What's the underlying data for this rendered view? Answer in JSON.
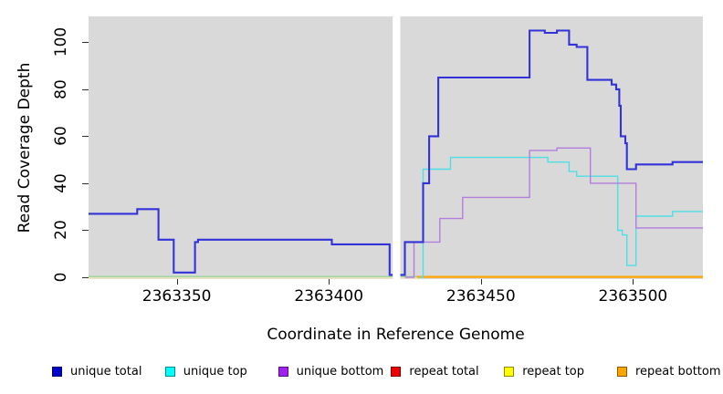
{
  "chart_data": {
    "type": "line",
    "line_style": "step",
    "title": "",
    "xlabel": "Coordinate in Reference Genome",
    "ylabel": "Read Coverage Depth",
    "xlim": [
      2363321,
      2363523
    ],
    "ylim": [
      0,
      111
    ],
    "xticks": [
      2363350,
      2363400,
      2363450,
      2363500
    ],
    "yticks": [
      0,
      20,
      40,
      60,
      80,
      100
    ],
    "grid": false,
    "panel_bg": "#D9D9D9",
    "legend_position": "bottom",
    "gap_band": {
      "from": 2363421,
      "to": 2363423.5,
      "color": "#FFFFFF"
    },
    "series": [
      {
        "name": "unique total",
        "legend_color": "#0000CC",
        "line_color": "#3232D8",
        "line_width": 2.1,
        "z": 3,
        "render": true,
        "steps": [
          [
            2363321,
            27
          ],
          [
            2363337,
            29
          ],
          [
            2363344,
            16
          ],
          [
            2363349,
            2
          ],
          [
            2363356,
            15
          ],
          [
            2363357,
            16
          ],
          [
            2363401,
            14
          ],
          [
            2363420,
            1
          ],
          [
            2363425,
            15
          ],
          [
            2363431,
            40
          ],
          [
            2363433,
            60
          ],
          [
            2363436,
            85
          ],
          [
            2363466,
            105
          ],
          [
            2363471,
            104
          ],
          [
            2363475,
            105
          ],
          [
            2363479,
            99
          ],
          [
            2363481.5,
            98
          ],
          [
            2363485,
            84
          ],
          [
            2363493,
            82
          ],
          [
            2363494.5,
            80
          ],
          [
            2363495.5,
            73
          ],
          [
            2363496,
            60
          ],
          [
            2363497.5,
            57
          ],
          [
            2363498,
            46
          ],
          [
            2363501,
            48
          ],
          [
            2363513,
            49
          ]
        ]
      },
      {
        "name": "unique top",
        "legend_color": "#00FFFF",
        "line_color": "#4EDFE6",
        "line_width": 1.4,
        "z": 1,
        "render": true,
        "steps": [
          [
            2363430,
            0
          ],
          [
            2363431,
            46
          ],
          [
            2363440,
            51
          ],
          [
            2363472,
            49
          ],
          [
            2363479,
            45
          ],
          [
            2363481.5,
            43
          ],
          [
            2363495,
            20
          ],
          [
            2363496.5,
            18
          ],
          [
            2363498,
            5
          ],
          [
            2363501,
            26
          ],
          [
            2363513,
            28
          ]
        ]
      },
      {
        "name": "unique bottom",
        "legend_color": "#A020F0",
        "line_color": "#B27EDC",
        "line_width": 1.4,
        "z": 2,
        "render": true,
        "steps": [
          [
            2363425,
            0
          ],
          [
            2363428,
            15
          ],
          [
            2363436.5,
            25
          ],
          [
            2363444,
            34
          ],
          [
            2363466,
            54
          ],
          [
            2363475,
            55
          ],
          [
            2363486,
            40
          ],
          [
            2363501,
            21
          ]
        ]
      },
      {
        "name": "repeat total",
        "legend_color": "#EE0000",
        "line_color": "#EE0000",
        "line_width": 1,
        "z": 0,
        "render": false,
        "steps": [
          [
            2363321,
            0
          ]
        ]
      },
      {
        "name": "repeat top",
        "legend_color": "#FFFF00",
        "line_color": "#FFFF00",
        "line_width": 1,
        "z": 0,
        "render": false,
        "steps": [
          [
            2363321,
            0
          ]
        ]
      },
      {
        "name": "repeat bottom",
        "legend_color": "#FFA500",
        "line_color": "#FFA500",
        "line_width": 2.2,
        "z": 0,
        "render": false,
        "steps": [
          [
            2363321,
            0
          ]
        ]
      }
    ],
    "baseline_render": [
      {
        "color": "#EDE8B4",
        "from": 2363321,
        "to": 2363430,
        "dy": 1.7,
        "width": 1.2
      },
      {
        "color": "#A2D6A0",
        "from": 2363321,
        "to": 2363430,
        "dy": 0,
        "width": 1.5
      },
      {
        "color": "#FFA500",
        "from": 2363429,
        "to": 2363523,
        "dy": 0.4,
        "width": 2.2
      }
    ]
  }
}
